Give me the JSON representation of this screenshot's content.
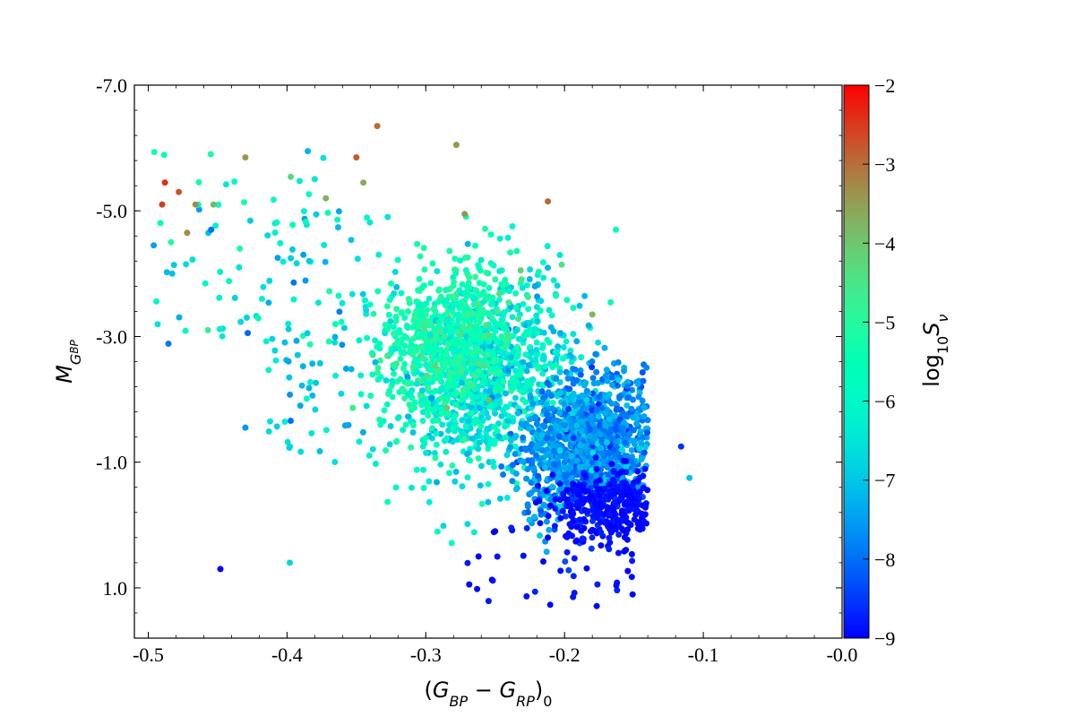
{
  "chart_data": {
    "type": "scatter",
    "title": "",
    "xlabel_parts": [
      "(",
      "G",
      "BP",
      " − ",
      "G",
      "RP",
      ")",
      "0"
    ],
    "ylabel_parts": [
      "M",
      "G",
      "BP"
    ],
    "xlim": [
      -0.51,
      0.0
    ],
    "ylim": [
      -7.0,
      1.8
    ],
    "y_inverted": true,
    "x_ticks": [
      -0.5,
      -0.4,
      -0.3,
      -0.2,
      -0.1,
      0.0
    ],
    "x_tick_labels": [
      "-0.5",
      "-0.4",
      "-0.3",
      "-0.2",
      "-0.1",
      "-0.0"
    ],
    "y_ticks": [
      -7.0,
      -5.0,
      -3.0,
      -1.0,
      1.0
    ],
    "y_tick_labels": [
      "-7.0",
      "-5.0",
      "-3.0",
      "-1.0",
      "1.0"
    ],
    "colorbar": {
      "label_parts": [
        "log",
        "10",
        "S",
        "ν"
      ],
      "ticks": [
        -2,
        -3,
        -4,
        -5,
        -6,
        -7,
        -8,
        -9
      ],
      "tick_labels": [
        "−2",
        "−3",
        "−4",
        "−5",
        "−6",
        "−7",
        "−8",
        "−9"
      ],
      "colormap": "rainbow",
      "range": [
        -9,
        -2
      ]
    },
    "grid": false,
    "marker_color_by": "log10 S_nu",
    "points_sample": [
      {
        "x": -0.49,
        "y": -5.1,
        "c": -2.5
      },
      {
        "x": -0.488,
        "y": -5.45,
        "c": -2.4
      },
      {
        "x": -0.478,
        "y": -5.3,
        "c": -2.7
      },
      {
        "x": -0.472,
        "y": -4.65,
        "c": -3.3
      },
      {
        "x": -0.466,
        "y": -5.1,
        "c": -3.3
      },
      {
        "x": -0.457,
        "y": -3.1,
        "c": -4.7
      },
      {
        "x": -0.453,
        "y": -5.1,
        "c": -3.8
      },
      {
        "x": -0.448,
        "y": 0.7,
        "c": -9.0
      },
      {
        "x": -0.43,
        "y": -5.85,
        "c": -3.4
      },
      {
        "x": -0.43,
        "y": -1.55,
        "c": -7.6
      },
      {
        "x": -0.398,
        "y": 0.6,
        "c": -6.8
      },
      {
        "x": -0.398,
        "y": -1.25,
        "c": -6.8
      },
      {
        "x": -0.385,
        "y": -5.95,
        "c": -7.2
      },
      {
        "x": -0.372,
        "y": -5.2,
        "c": -3.7
      },
      {
        "x": -0.345,
        "y": -5.45,
        "c": -3.6
      },
      {
        "x": -0.35,
        "y": -5.85,
        "c": -2.8
      },
      {
        "x": -0.335,
        "y": -6.35,
        "c": -3.0
      },
      {
        "x": -0.278,
        "y": -6.05,
        "c": -3.4
      },
      {
        "x": -0.272,
        "y": -4.95,
        "c": -3.4
      },
      {
        "x": -0.212,
        "y": -5.15,
        "c": -2.9
      },
      {
        "x": -0.163,
        "y": -4.7,
        "c": -5.6
      },
      {
        "x": -0.18,
        "y": -3.35,
        "c": -3.8
      },
      {
        "x": -0.116,
        "y": -1.25,
        "c": -8.6
      },
      {
        "x": -0.11,
        "y": -0.75,
        "c": -7.1
      },
      {
        "x": -0.25,
        "y": 0.1,
        "c": -9.0
      },
      {
        "x": -0.212,
        "y": 0.2,
        "c": -9.0
      },
      {
        "x": -0.262,
        "y": 0.5,
        "c": -9.0
      },
      {
        "x": -0.157,
        "y": 0.42,
        "c": -9.0
      },
      {
        "x": -0.197,
        "y": 0.72,
        "c": -8.4
      }
    ]
  }
}
